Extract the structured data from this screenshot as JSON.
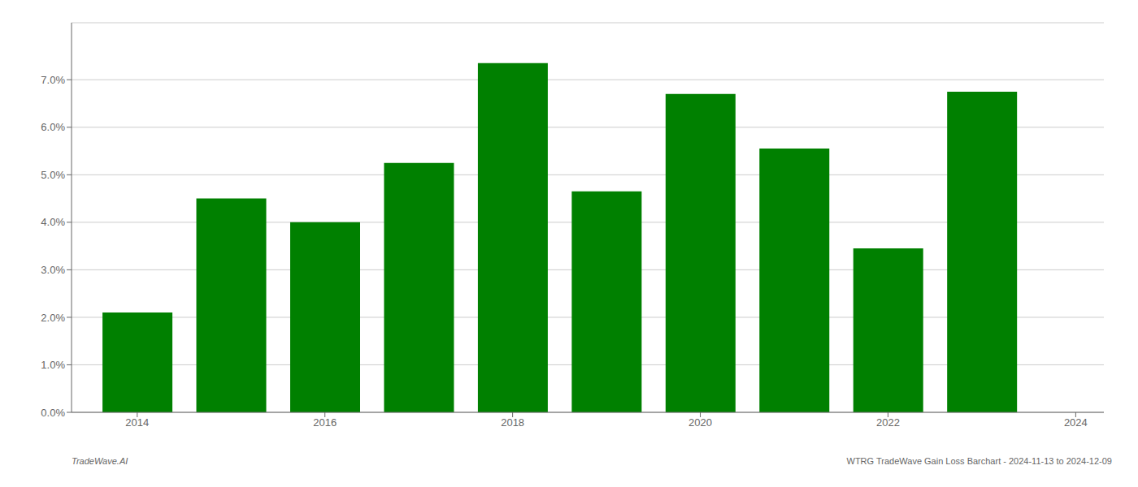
{
  "chart_data": {
    "type": "bar",
    "x": [
      2014,
      2015,
      2016,
      2017,
      2018,
      2019,
      2020,
      2021,
      2022,
      2023
    ],
    "values": [
      0.021,
      0.045,
      0.04,
      0.0525,
      0.0735,
      0.0465,
      0.067,
      0.0555,
      0.0345,
      0.0675
    ],
    "color": "#008000",
    "xlim": [
      2013.3,
      2024.3
    ],
    "xticks": [
      2014,
      2016,
      2018,
      2020,
      2022,
      2024
    ],
    "ylim": [
      0,
      0.082
    ],
    "yticks": [
      {
        "value": 0.0,
        "label": "0.0%"
      },
      {
        "value": 0.01,
        "label": "1.0%"
      },
      {
        "value": 0.02,
        "label": "2.0%"
      },
      {
        "value": 0.03,
        "label": "3.0%"
      },
      {
        "value": 0.04,
        "label": "4.0%"
      },
      {
        "value": 0.05,
        "label": "5.0%"
      },
      {
        "value": 0.06,
        "label": "6.0%"
      },
      {
        "value": 0.07,
        "label": "7.0%"
      }
    ],
    "grid": true,
    "annotations": [
      "TradeWave.AI",
      "WTRG TradeWave Gain Loss Barchart - 2024-11-13 to 2024-12-09"
    ]
  }
}
